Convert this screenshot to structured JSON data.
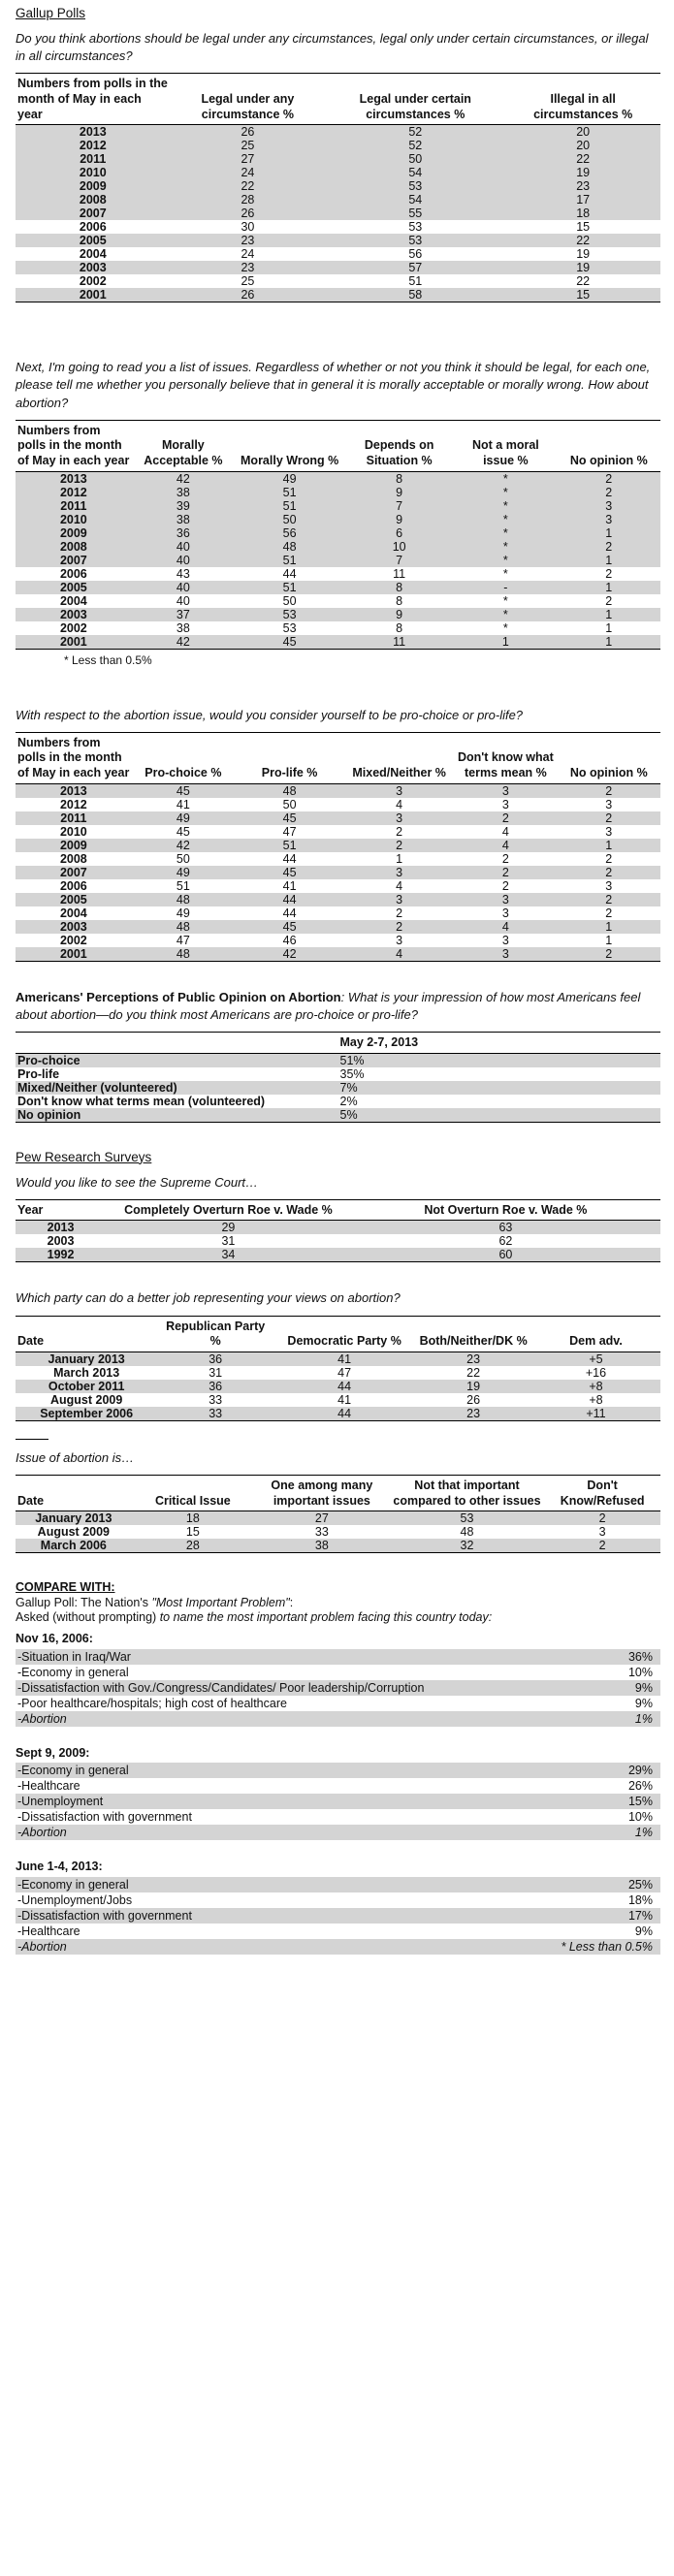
{
  "gallup": {
    "heading": "Gallup Polls",
    "q1": "Do you think abortions should be legal under any circumstances, legal only under certain circumstances, or illegal in all circumstances?",
    "t1": {
      "headers": [
        "Numbers from polls in the month of May in each year",
        "Legal under any circumstance %",
        "Legal under certain circumstances %",
        "Illegal in all circumstances %"
      ],
      "rows": [
        [
          "2013",
          "26",
          "52",
          "20"
        ],
        [
          "2012",
          "25",
          "52",
          "20"
        ],
        [
          "2011",
          "27",
          "50",
          "22"
        ],
        [
          "2010",
          "24",
          "54",
          "19"
        ],
        [
          "2009",
          "22",
          "53",
          "23"
        ],
        [
          "2008",
          "28",
          "54",
          "17"
        ],
        [
          "2007",
          "26",
          "55",
          "18"
        ],
        [
          "2006",
          "30",
          "53",
          "15"
        ],
        [
          "2005",
          "23",
          "53",
          "22"
        ],
        [
          "2004",
          "24",
          "56",
          "19"
        ],
        [
          "2003",
          "23",
          "57",
          "19"
        ],
        [
          "2002",
          "25",
          "51",
          "22"
        ],
        [
          "2001",
          "26",
          "58",
          "15"
        ]
      ]
    },
    "q2": "Next, I'm going to read you a list of issues.  Regardless of whether or not you think it should be legal, for each one, please tell me whether you personally believe that in general it is morally acceptable or morally wrong.  How about abortion?",
    "t2": {
      "headers": [
        "Numbers from polls in the month of May in each year",
        "Morally Acceptable %",
        "Morally Wrong %",
        "Depends on Situation %",
        "Not a moral issue %",
        "No opinion %"
      ],
      "rows": [
        [
          "2013",
          "42",
          "49",
          "8",
          "*",
          "2"
        ],
        [
          "2012",
          "38",
          "51",
          "9",
          "*",
          "2"
        ],
        [
          "2011",
          "39",
          "51",
          "7",
          "*",
          "3"
        ],
        [
          "2010",
          "38",
          "50",
          "9",
          "*",
          "3"
        ],
        [
          "2009",
          "36",
          "56",
          "6",
          "*",
          "1"
        ],
        [
          "2008",
          "40",
          "48",
          "10",
          "*",
          "2"
        ],
        [
          "2007",
          "40",
          "51",
          "7",
          "*",
          "1"
        ],
        [
          "2006",
          "43",
          "44",
          "11",
          "*",
          "2"
        ],
        [
          "2005",
          "40",
          "51",
          "8",
          "-",
          "1"
        ],
        [
          "2004",
          "40",
          "50",
          "8",
          "*",
          "2"
        ],
        [
          "2003",
          "37",
          "53",
          "9",
          "*",
          "1"
        ],
        [
          "2002",
          "38",
          "53",
          "8",
          "*",
          "1"
        ],
        [
          "2001",
          "42",
          "45",
          "11",
          "1",
          "1"
        ]
      ],
      "note": "* Less than 0.5%"
    },
    "q3": "With respect to the abortion issue, would you consider yourself to be pro-choice or pro-life?",
    "t3": {
      "headers": [
        "Numbers from polls in the month of May in each year",
        "Pro-choice %",
        "Pro-life %",
        "Mixed/Neither %",
        "Don't know what terms mean %",
        "No opinion %"
      ],
      "rows": [
        [
          "2013",
          "45",
          "48",
          "3",
          "3",
          "2"
        ],
        [
          "2012",
          "41",
          "50",
          "4",
          "3",
          "3"
        ],
        [
          "2011",
          "49",
          "45",
          "3",
          "2",
          "2"
        ],
        [
          "2010",
          "45",
          "47",
          "2",
          "4",
          "3"
        ],
        [
          "2009",
          "42",
          "51",
          "2",
          "4",
          "1"
        ],
        [
          "2008",
          "50",
          "44",
          "1",
          "2",
          "2"
        ],
        [
          "2007",
          "49",
          "45",
          "3",
          "2",
          "2"
        ],
        [
          "2006",
          "51",
          "41",
          "4",
          "2",
          "3"
        ],
        [
          "2005",
          "48",
          "44",
          "3",
          "3",
          "2"
        ],
        [
          "2004",
          "49",
          "44",
          "2",
          "3",
          "2"
        ],
        [
          "2003",
          "48",
          "45",
          "2",
          "4",
          "1"
        ],
        [
          "2002",
          "47",
          "46",
          "3",
          "3",
          "1"
        ],
        [
          "2001",
          "48",
          "42",
          "4",
          "3",
          "2"
        ]
      ]
    },
    "q4_bold": "Americans' Perceptions of Public Opinion on Abortion",
    "q4_rest": ": What is your impression of how most Americans feel about abortion—do you think most Americans are pro-choice or pro-life?",
    "t4": {
      "header": "May 2-7, 2013",
      "rows": [
        [
          "Pro-choice",
          "51%"
        ],
        [
          "Pro-life",
          "35%"
        ],
        [
          "Mixed/Neither (volunteered)",
          "7%"
        ],
        [
          "Don't know what terms mean (volunteered)",
          "2%"
        ],
        [
          "No opinion",
          "5%"
        ]
      ]
    }
  },
  "pew": {
    "heading": "Pew Research Surveys",
    "q5": "Would you like to see the Supreme Court…",
    "t5": {
      "headers": [
        "Year",
        "Completely Overturn Roe v. Wade %",
        "Not Overturn Roe v. Wade %"
      ],
      "rows": [
        [
          "2013",
          "29",
          "63"
        ],
        [
          "2003",
          "31",
          "62"
        ],
        [
          "1992",
          "34",
          "60"
        ]
      ]
    },
    "q6": "Which party can do a better job representing your views on abortion?",
    "t6": {
      "headers": [
        "Date",
        "Republican Party %",
        "Democratic Party %",
        "Both/Neither/DK %",
        "Dem adv."
      ],
      "rows": [
        [
          "January 2013",
          "36",
          "41",
          "23",
          "+5"
        ],
        [
          "March 2013",
          "31",
          "47",
          "22",
          "+16"
        ],
        [
          "October 2011",
          "36",
          "44",
          "19",
          "+8"
        ],
        [
          "August 2009",
          "33",
          "41",
          "26",
          "+8"
        ],
        [
          "September 2006",
          "33",
          "44",
          "23",
          "+11"
        ]
      ]
    },
    "q7": "Issue of abortion is…",
    "t7": {
      "headers": [
        "Date",
        "Critical Issue",
        "One among many important issues",
        "Not that important compared to other issues",
        "Don't Know/Refused"
      ],
      "rows": [
        [
          "January 2013",
          "18",
          "27",
          "53",
          "2"
        ],
        [
          "August 2009",
          "15",
          "33",
          "48",
          "3"
        ],
        [
          "March 2006",
          "28",
          "38",
          "32",
          "2"
        ]
      ]
    }
  },
  "compare": {
    "title": "COMPARE WITH:",
    "line1_prefix": "Gallup Poll: The Nation's ",
    "line1_italic": "\"Most Important Problem\"",
    "line1_suffix": ":",
    "line2_prefix": "Asked (without prompting) ",
    "line2_italic": "to name the most important problem facing this country today:",
    "blocks": [
      {
        "date": "Nov 16, 2006:",
        "items": [
          [
            "-Situation in Iraq/War",
            "36%"
          ],
          [
            "-Economy in general",
            "10%"
          ],
          [
            "-Dissatisfaction with Gov./Congress/Candidates/ Poor leadership/Corruption",
            "9%"
          ],
          [
            "-Poor healthcare/hospitals; high cost of healthcare",
            "9%"
          ],
          [
            "-Abortion",
            "1%"
          ]
        ]
      },
      {
        "date": "Sept 9, 2009:",
        "items": [
          [
            "-Economy in general",
            "29%"
          ],
          [
            "-Healthcare",
            "26%"
          ],
          [
            "-Unemployment",
            "15%"
          ],
          [
            "-Dissatisfaction with government",
            "10%"
          ],
          [
            "-Abortion",
            "1%"
          ]
        ]
      },
      {
        "date": "June 1-4, 2013:",
        "items": [
          [
            "-Economy in general",
            "25%"
          ],
          [
            "-Unemployment/Jobs",
            "18%"
          ],
          [
            "-Dissatisfaction with government",
            "17%"
          ],
          [
            "-Healthcare",
            "9%"
          ],
          [
            "-Abortion",
            "* Less than 0.5%"
          ]
        ]
      }
    ]
  }
}
